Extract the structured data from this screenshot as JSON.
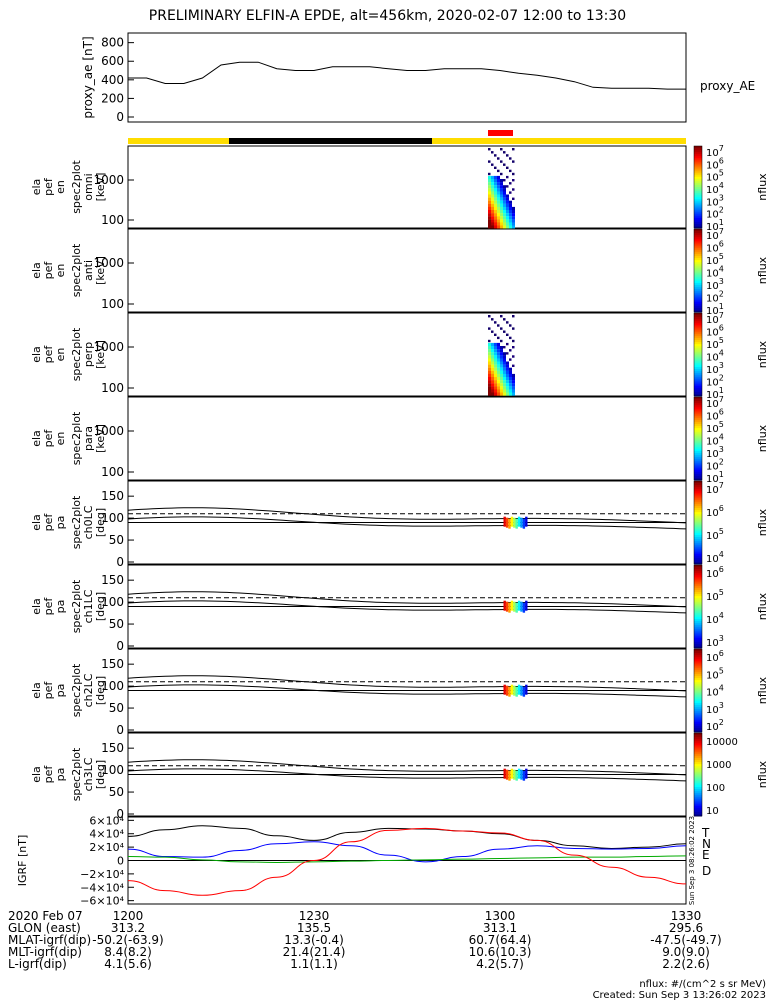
{
  "title": "PRELIMINARY ELFIN-A EPDE, alt=456km, 2020-02-07 12:00 to 13:30",
  "chart_data": [
    {
      "type": "line",
      "name": "proxy_ae",
      "ylabel": "proxy_ae [nT]",
      "yticks": [
        "800",
        "600",
        "400",
        "200",
        "0"
      ],
      "ylim": [
        0,
        850
      ],
      "legend": "proxy_AE",
      "x_minutes": [
        0,
        3,
        6,
        9,
        12,
        15,
        18,
        21,
        24,
        27,
        30,
        33,
        36,
        39,
        42,
        45,
        48,
        51,
        54,
        57,
        60,
        63,
        66,
        69,
        72,
        75,
        78,
        81,
        84,
        87,
        90
      ],
      "values": [
        420,
        420,
        360,
        360,
        420,
        560,
        590,
        590,
        520,
        500,
        500,
        540,
        540,
        540,
        520,
        500,
        500,
        520,
        520,
        520,
        500,
        470,
        450,
        420,
        380,
        320,
        310,
        310,
        310,
        300,
        300
      ]
    },
    {
      "type": "heatmap",
      "name": "ela pef en spec2plot omni",
      "ylabel": [
        "ela",
        "pef",
        "en",
        "spec2plot",
        "omni",
        "[keV]"
      ],
      "yticks": [
        "1000",
        "100"
      ],
      "colorbar": {
        "label": "nflux",
        "ticks": [
          "10^7",
          "10^6",
          "10^5",
          "10^4",
          "10^3",
          "10^2",
          "10^1"
        ]
      }
    },
    {
      "type": "heatmap",
      "name": "ela pef en spec2plot anti",
      "ylabel": [
        "ela",
        "pef",
        "en",
        "spec2plot",
        "anti",
        "[keV]"
      ],
      "yticks": [
        "1000",
        "100"
      ],
      "colorbar": {
        "label": "nflux",
        "ticks": [
          "10^7",
          "10^6",
          "10^5",
          "10^4",
          "10^3",
          "10^2",
          "10^1"
        ]
      }
    },
    {
      "type": "heatmap",
      "name": "ela pef en spec2plot perp",
      "ylabel": [
        "ela",
        "pef",
        "en",
        "spec2plot",
        "perp",
        "[keV]"
      ],
      "yticks": [
        "1000",
        "100"
      ],
      "colorbar": {
        "label": "nflux",
        "ticks": [
          "10^7",
          "10^6",
          "10^5",
          "10^4",
          "10^3",
          "10^2",
          "10^1"
        ]
      }
    },
    {
      "type": "heatmap",
      "name": "ela pef en spec2plot para",
      "ylabel": [
        "ela",
        "pef",
        "en",
        "spec2plot",
        "para",
        "[keV]"
      ],
      "yticks": [
        "1000",
        "100"
      ],
      "colorbar": {
        "label": "nflux",
        "ticks": [
          "10^7",
          "10^6",
          "10^5",
          "10^4",
          "10^3",
          "10^2",
          "10^1"
        ]
      }
    },
    {
      "type": "heatmap",
      "name": "ela pef pa spec2plot ch0LC",
      "ylabel": [
        "ela",
        "pef",
        "pa",
        "spec2plot",
        "ch0LC",
        "[deg]"
      ],
      "yticks": [
        "150",
        "100",
        "50",
        "0"
      ],
      "colorbar": {
        "label": "nflux",
        "ticks": [
          "10^7",
          "10^6",
          "10^5",
          "10^4"
        ]
      }
    },
    {
      "type": "heatmap",
      "name": "ela pef pa spec2plot ch1LC",
      "ylabel": [
        "ela",
        "pef",
        "pa",
        "spec2plot",
        "ch1LC",
        "[deg]"
      ],
      "yticks": [
        "150",
        "100",
        "50",
        "0"
      ],
      "colorbar": {
        "label": "nflux",
        "ticks": [
          "10^6",
          "10^5",
          "10^4",
          "10^3"
        ]
      }
    },
    {
      "type": "heatmap",
      "name": "ela pef pa spec2plot ch2LC",
      "ylabel": [
        "ela",
        "pef",
        "pa",
        "spec2plot",
        "ch2LC",
        "[deg]"
      ],
      "yticks": [
        "150",
        "100",
        "50",
        "0"
      ],
      "colorbar": {
        "label": "nflux",
        "ticks": [
          "10^6",
          "10^5",
          "10^4",
          "10^3",
          "10^2"
        ]
      }
    },
    {
      "type": "heatmap",
      "name": "ela pef pa spec2plot ch3LC",
      "ylabel": [
        "ela",
        "pef",
        "pa",
        "spec2plot",
        "ch3LC",
        "[deg]"
      ],
      "yticks": [
        "150",
        "100",
        "50",
        "0"
      ],
      "colorbar": {
        "label": "nflux",
        "ticks": [
          "10000",
          "1000",
          "100",
          "10"
        ]
      }
    },
    {
      "type": "line",
      "name": "IGRF",
      "ylabel": "IGRF [nT]",
      "yticks": [
        "6×10⁴",
        "4×10⁴",
        "2×10⁴",
        "0",
        "−2×10⁴",
        "−4×10⁴",
        "−6×10⁴"
      ],
      "ylim": [
        -65000,
        65000
      ],
      "x_minutes": [
        0,
        6,
        12,
        18,
        24,
        30,
        36,
        42,
        48,
        54,
        60,
        66,
        72,
        78,
        84,
        90
      ],
      "series": [
        {
          "name": "T",
          "color": "#000000",
          "values": [
            36000,
            46000,
            52000,
            48000,
            37000,
            30000,
            42000,
            48000,
            47000,
            44000,
            40000,
            30000,
            22000,
            18000,
            20000,
            25000
          ]
        },
        {
          "name": "N",
          "color": "#0000ff",
          "values": [
            17000,
            6000,
            5000,
            15000,
            25000,
            28000,
            22000,
            8000,
            -2000,
            6000,
            17000,
            22000,
            18000,
            17000,
            18000,
            22000
          ]
        },
        {
          "name": "E",
          "color": "#00aa00",
          "values": [
            6000,
            5000,
            1000,
            -2000,
            -3000,
            -2000,
            -1000,
            0,
            1000,
            2000,
            3000,
            4000,
            5000,
            5000,
            6000,
            7000
          ]
        },
        {
          "name": "D",
          "color": "#ff0000",
          "values": [
            -30000,
            -45000,
            -52000,
            -45000,
            -25000,
            0,
            28000,
            45000,
            48000,
            44000,
            41000,
            30000,
            8000,
            -10000,
            -25000,
            -35000
          ]
        }
      ]
    }
  ],
  "orbit_bar": {
    "colors": {
      "day": "#ffdd00",
      "night": "#000000",
      "science": "#ff0000"
    }
  },
  "side_stamp": "Sun Sep 3 08:26:02 2023",
  "footer": {
    "rows": [
      {
        "label": "2020 Feb 07",
        "values": [
          "1200",
          "1230",
          "1300",
          "1330"
        ]
      },
      {
        "label": "GLON (east)",
        "values": [
          "313.2",
          "135.5",
          "313.1",
          "295.6"
        ]
      },
      {
        "label": "MLAT-igrf(dip)",
        "values": [
          "-50.2(-63.9)",
          "13.3(-0.4)",
          "60.7(64.4)",
          "-47.5(-49.7)"
        ]
      },
      {
        "label": "MLT-igrf(dip)",
        "values": [
          "8.4(8.2)",
          "21.4(21.4)",
          "10.6(10.3)",
          "9.0(9.0)"
        ]
      },
      {
        "label": "L-igrf(dip)",
        "values": [
          "4.1(5.6)",
          "1.1(1.1)",
          "4.2(5.7)",
          "2.2(2.6)"
        ]
      }
    ],
    "nflux_units": "nflux: #/(cm^2 s sr MeV)",
    "created": "Created: Sun Sep  3 13:26:02 2023"
  }
}
